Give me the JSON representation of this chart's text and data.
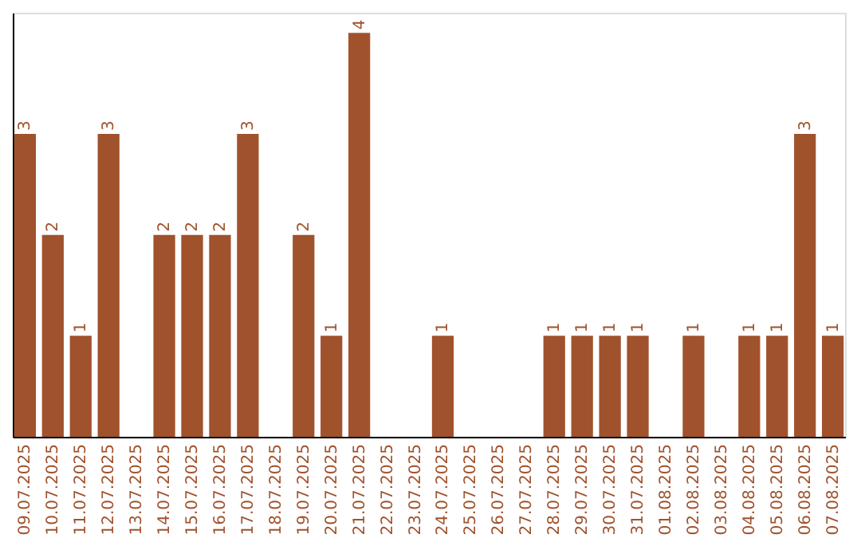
{
  "chart_data": {
    "type": "bar",
    "categories": [
      "09.07.2025",
      "10.07.2025",
      "11.07.2025",
      "12.07.2025",
      "13.07.2025",
      "14.07.2025",
      "15.07.2025",
      "16.07.2025",
      "17.07.2025",
      "18.07.2025",
      "19.07.2025",
      "20.07.2025",
      "21.07.2025",
      "22.07.2025",
      "23.07.2025",
      "24.07.2025",
      "25.07.2025",
      "26.07.2025",
      "27.07.2025",
      "28.07.2025",
      "29.07.2025",
      "30.07.2025",
      "31.07.2025",
      "01.08.2025",
      "02.08.2025",
      "03.08.2025",
      "04.08.2025",
      "05.08.2025",
      "06.08.2025",
      "07.08.2025"
    ],
    "values": [
      3,
      2,
      1,
      3,
      0,
      2,
      2,
      2,
      3,
      0,
      2,
      1,
      4,
      0,
      0,
      1,
      0,
      0,
      0,
      1,
      1,
      1,
      1,
      0,
      1,
      0,
      1,
      1,
      3,
      1
    ],
    "value_labels": [
      "3",
      "2",
      "1",
      "3",
      null,
      "2",
      "2",
      "2",
      "3",
      null,
      "2",
      "1",
      "4",
      null,
      null,
      "1",
      null,
      null,
      null,
      "1",
      "1",
      "1",
      "1",
      null,
      "1",
      null,
      "1",
      "1",
      "3",
      "1"
    ],
    "color": "#a0522d",
    "ylim": [
      0,
      4.2
    ],
    "tick_labels": "x",
    "grid": false
  }
}
